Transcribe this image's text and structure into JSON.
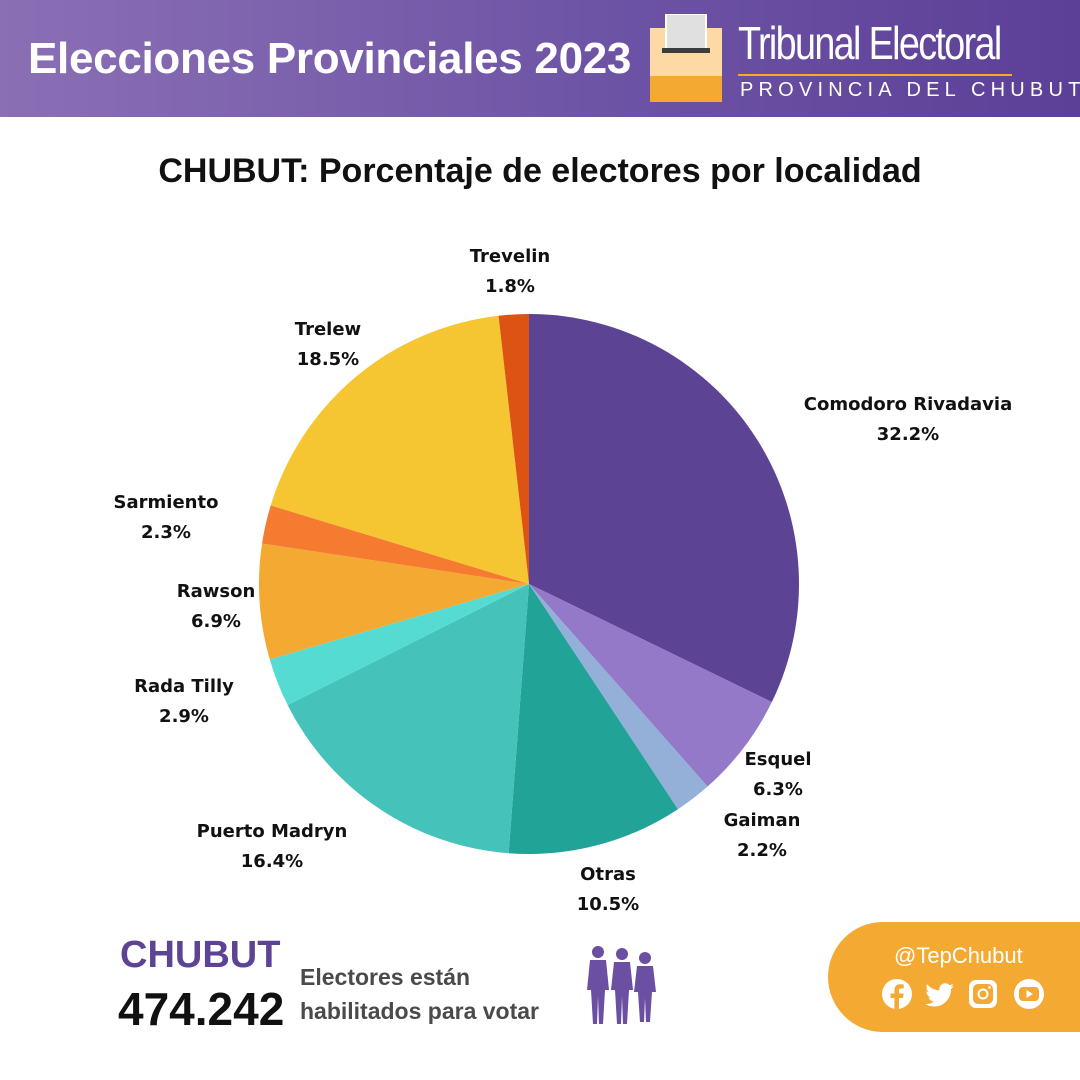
{
  "header": {
    "title": "Elecciones Provinciales 2023",
    "org_name": "Tribunal Electoral",
    "org_subtitle": "PROVINCIA DEL CHUBUT",
    "accent_color": "#f4a933",
    "brand_color": "#5d4394"
  },
  "chart_data": {
    "type": "pie",
    "title": "CHUBUT: Porcentaje de electores por localidad",
    "unit": "%",
    "slices": [
      {
        "label": "Comodoro Rivadavia",
        "value": 32.2,
        "display": "32.2%",
        "color": "#5d4394"
      },
      {
        "label": "Esquel",
        "value": 6.3,
        "display": "6.3%",
        "color": "#9379c7"
      },
      {
        "label": "Gaiman",
        "value": 2.2,
        "display": "2.2%",
        "color": "#94b0d8"
      },
      {
        "label": "Otras",
        "value": 10.5,
        "display": "10.5%",
        "color": "#22a398"
      },
      {
        "label": "Puerto Madryn",
        "value": 16.4,
        "display": "16.4%",
        "color": "#45c2b9"
      },
      {
        "label": "Rada Tilly",
        "value": 2.9,
        "display": "2.9%",
        "color": "#56dbd3"
      },
      {
        "label": "Rawson",
        "value": 6.9,
        "display": "6.9%",
        "color": "#f4a933"
      },
      {
        "label": "Sarmiento",
        "value": 2.3,
        "display": "2.3%",
        "color": "#f57b31"
      },
      {
        "label": "Trelew",
        "value": 18.5,
        "display": "18.5%",
        "color": "#f6c532"
      },
      {
        "label": "Trevelin",
        "value": 1.8,
        "display": "1.8%",
        "color": "#dc5314"
      }
    ],
    "start": "12 o'clock",
    "direction": "clockwise",
    "legend": "none"
  },
  "footer": {
    "province": "CHUBUT",
    "voters_count": "474.242",
    "voters_text": "Electores están habilitados para votar",
    "social_handle": "@TepChubut",
    "social_icons": [
      "facebook-icon",
      "twitter-icon",
      "instagram-icon",
      "youtube-icon"
    ]
  }
}
